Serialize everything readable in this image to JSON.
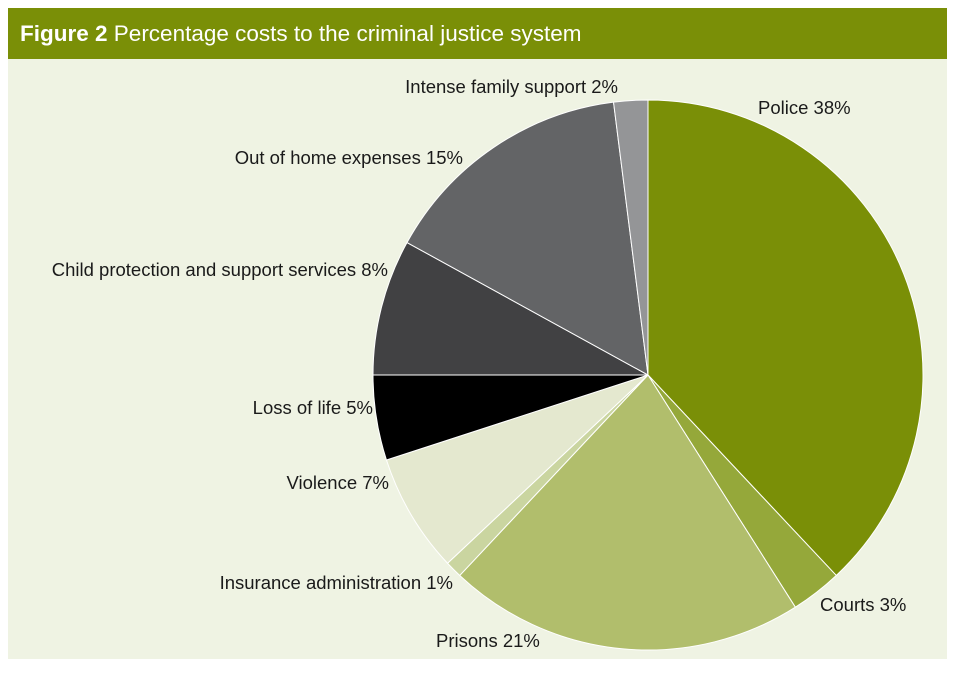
{
  "figure": {
    "number": "Figure 2",
    "title": "Percentage costs to the criminal justice system"
  },
  "colors": {
    "header_bg": "#7a8f07",
    "panel_bg": "#eff3e3"
  },
  "chart_data": {
    "type": "pie",
    "title": "Percentage costs to the criminal justice system",
    "start_angle_deg": 0,
    "direction": "clockwise",
    "slices": [
      {
        "name": "Police",
        "value": 38,
        "label": "Police 38%",
        "color": "#7a8f07"
      },
      {
        "name": "Courts",
        "value": 3,
        "label": "Courts 3%",
        "color": "#95a83a"
      },
      {
        "name": "Prisons",
        "value": 21,
        "label": "Prisons 21%",
        "color": "#b1be6c"
      },
      {
        "name": "Insurance administration",
        "value": 1,
        "label": "Insurance administration 1%",
        "color": "#cad5a0"
      },
      {
        "name": "Violence",
        "value": 7,
        "label": "Violence 7%",
        "color": "#e4e8cf"
      },
      {
        "name": "Loss of life",
        "value": 5,
        "label": "Loss of life 5%",
        "color": "#000000"
      },
      {
        "name": "Child protection and support services",
        "value": 8,
        "label": "Child protection and support services 8%",
        "color": "#414143"
      },
      {
        "name": "Out of home expenses",
        "value": 15,
        "label": "Out of home expenses 15%",
        "color": "#636466"
      },
      {
        "name": "Intense family support",
        "value": 2,
        "label": "Intense family support 2%",
        "color": "#949597"
      }
    ]
  }
}
